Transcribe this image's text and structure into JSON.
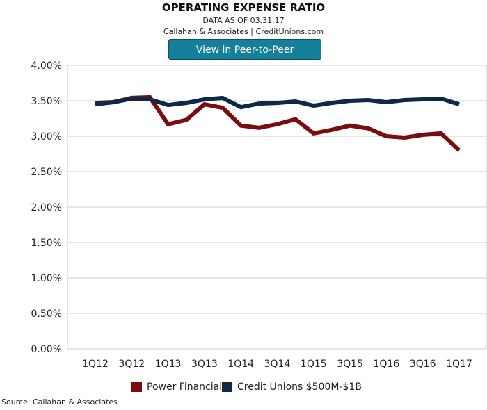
{
  "header": {
    "title": "OPERATING EXPENSE RATIO",
    "subtitle": "DATA AS OF 03.31.17",
    "credit": "Callahan & Associates | CreditUnions.com",
    "button_label": "View in Peer-to-Peer"
  },
  "source": "Source: Callahan & Associates",
  "colors": {
    "power_financial": "#7a0e0e",
    "credit_unions": "#0f2846",
    "button": "#167f99"
  },
  "chart_data": {
    "type": "line",
    "title": "OPERATING EXPENSE RATIO",
    "x": [
      "1Q12",
      "2Q12",
      "3Q12",
      "4Q12",
      "1Q13",
      "2Q13",
      "3Q13",
      "4Q13",
      "1Q14",
      "2Q14",
      "3Q14",
      "4Q14",
      "1Q15",
      "2Q15",
      "3Q15",
      "4Q15",
      "1Q16",
      "2Q16",
      "3Q16",
      "4Q16",
      "1Q17"
    ],
    "x_tick_labels": [
      "1Q12",
      "3Q12",
      "1Q13",
      "3Q13",
      "1Q14",
      "3Q14",
      "1Q15",
      "3Q15",
      "1Q16",
      "3Q16",
      "1Q17"
    ],
    "y_tick_labels": [
      "0.00%",
      "0.50%",
      "1.00%",
      "1.50%",
      "2.00%",
      "2.50%",
      "3.00%",
      "3.50%",
      "4.00%"
    ],
    "ylim": [
      0,
      4
    ],
    "grid": "horizontal",
    "legend_position": "bottom",
    "series": [
      {
        "name": "Power Financial",
        "color": "#7a0e0e",
        "values": [
          3.47,
          3.48,
          3.54,
          3.55,
          3.17,
          3.23,
          3.45,
          3.4,
          3.15,
          3.12,
          3.17,
          3.24,
          3.04,
          3.09,
          3.15,
          3.11,
          3.0,
          2.98,
          3.02,
          3.04,
          2.8
        ]
      },
      {
        "name": "Credit Unions $500M-$1B",
        "color": "#0f2846",
        "values": [
          3.45,
          3.48,
          3.53,
          3.52,
          3.44,
          3.47,
          3.52,
          3.54,
          3.41,
          3.46,
          3.47,
          3.49,
          3.43,
          3.47,
          3.5,
          3.51,
          3.48,
          3.51,
          3.52,
          3.53,
          3.45
        ]
      }
    ]
  }
}
